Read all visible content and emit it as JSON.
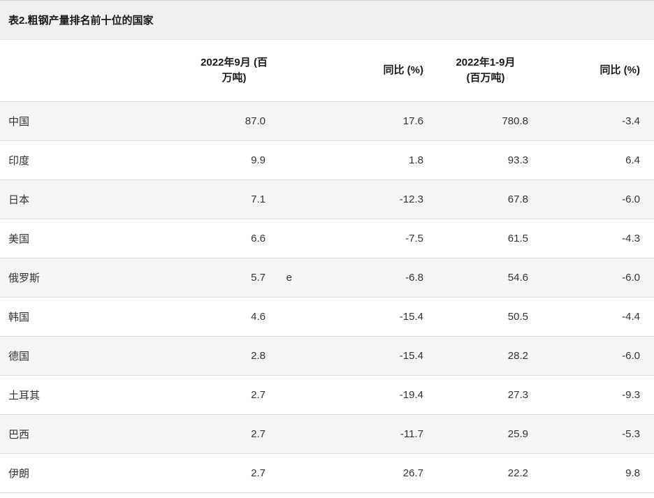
{
  "chart_data": {
    "type": "table",
    "title": "表2.粗钢产量排名前十位的国家",
    "columns": [
      "",
      "2022年9月 (百万吨)",
      "同比 (%)",
      "2022年1-9月 (百万吨)",
      "同比 (%)"
    ],
    "categories": [
      "中国",
      "印度",
      "日本",
      "美国",
      "俄罗斯",
      "韩国",
      "德国",
      "土耳其",
      "巴西",
      "伊朗"
    ],
    "series": [
      {
        "name": "2022年9月 (百万吨)",
        "values": [
          87.0,
          9.9,
          7.1,
          6.6,
          5.7,
          4.6,
          2.8,
          2.7,
          2.7,
          2.7
        ]
      },
      {
        "name": "同比 (%)",
        "values": [
          17.6,
          1.8,
          -12.3,
          -7.5,
          -6.8,
          -15.4,
          -15.4,
          -19.4,
          -11.7,
          26.7
        ]
      },
      {
        "name": "2022年1-9月 (百万吨)",
        "values": [
          780.8,
          93.3,
          67.8,
          61.5,
          54.6,
          50.5,
          28.2,
          27.3,
          25.9,
          22.2
        ]
      },
      {
        "name": "同比 (%)",
        "values": [
          -3.4,
          6.4,
          -6.0,
          -4.3,
          -6.0,
          -4.4,
          -6.0,
          -9.3,
          -5.3,
          9.8
        ]
      }
    ],
    "notes": [
      {
        "row": "俄罗斯",
        "column": "2022年9月 (百万吨)",
        "marker": "e"
      }
    ],
    "layout": {
      "striped_rows": true,
      "stripe_color": "#f5f5f5",
      "caption_bg": "#f0f0f0",
      "row_border": "#dddddd"
    }
  },
  "table": {
    "title": "表2.粗钢产量排名前十位的国家",
    "head": {
      "c1l1": "2022年9月 (百",
      "c1l2": "万吨)",
      "c2": "同比 (%)",
      "c3l1": "2022年1-9月",
      "c3l2": "(百万吨)",
      "c4": "同比 (%)"
    },
    "rows": [
      {
        "country": "中国",
        "sep": "87.0",
        "note": "",
        "yoy_sep": "17.6",
        "cum": "780.8",
        "yoy_cum": "-3.4"
      },
      {
        "country": "印度",
        "sep": "9.9",
        "note": "",
        "yoy_sep": "1.8",
        "cum": "93.3",
        "yoy_cum": "6.4"
      },
      {
        "country": "日本",
        "sep": "7.1",
        "note": "",
        "yoy_sep": "-12.3",
        "cum": "67.8",
        "yoy_cum": "-6.0"
      },
      {
        "country": "美国",
        "sep": "6.6",
        "note": "",
        "yoy_sep": "-7.5",
        "cum": "61.5",
        "yoy_cum": "-4.3"
      },
      {
        "country": "俄罗斯",
        "sep": "5.7",
        "note": "e",
        "yoy_sep": "-6.8",
        "cum": "54.6",
        "yoy_cum": "-6.0"
      },
      {
        "country": "韩国",
        "sep": "4.6",
        "note": "",
        "yoy_sep": "-15.4",
        "cum": "50.5",
        "yoy_cum": "-4.4"
      },
      {
        "country": "德国",
        "sep": "2.8",
        "note": "",
        "yoy_sep": "-15.4",
        "cum": "28.2",
        "yoy_cum": "-6.0"
      },
      {
        "country": "土耳其",
        "sep": "2.7",
        "note": "",
        "yoy_sep": "-19.4",
        "cum": "27.3",
        "yoy_cum": "-9.3"
      },
      {
        "country": "巴西",
        "sep": "2.7",
        "note": "",
        "yoy_sep": "-11.7",
        "cum": "25.9",
        "yoy_cum": "-5.3"
      },
      {
        "country": "伊朗",
        "sep": "2.7",
        "note": "",
        "yoy_sep": "26.7",
        "cum": "22.2",
        "yoy_cum": "9.8"
      }
    ]
  },
  "colors": {
    "caption_bg": "#f0f0f0",
    "stripe_bg": "#f5f5f5",
    "border": "#dddddd",
    "text": "#333333",
    "heading_text": "#1a1a1a"
  }
}
